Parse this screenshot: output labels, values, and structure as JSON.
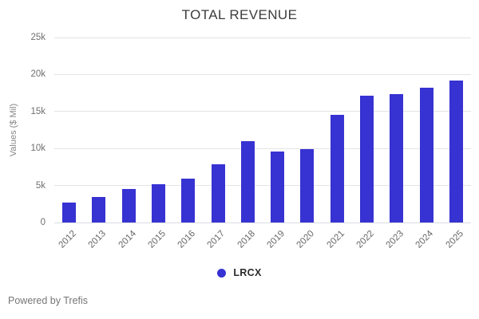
{
  "title": "TOTAL REVENUE",
  "footer": {
    "powered_by": "Powered by Trefis"
  },
  "legend": {
    "label": "LRCX",
    "marker_color": "#3732d2"
  },
  "colors": {
    "bar": "#3732d2",
    "grid": "#e4e4e4",
    "baseline": "#d8dde3",
    "axis_text": "#6f6f6f",
    "title_text": "#3c3c3c"
  },
  "chart_data": {
    "type": "bar",
    "title": "TOTAL REVENUE",
    "xlabel": "",
    "ylabel": "Values ($ Mil)",
    "categories": [
      "2012",
      "2013",
      "2014",
      "2015",
      "2016",
      "2017",
      "2018",
      "2019",
      "2020",
      "2021",
      "2022",
      "2023",
      "2024",
      "2025"
    ],
    "series": [
      {
        "name": "LRCX",
        "color": "#3732d2",
        "values": [
          2650,
          3500,
          4550,
          5200,
          5900,
          7900,
          11000,
          9600,
          9900,
          14600,
          17100,
          17350,
          18200,
          19200
        ]
      }
    ],
    "ylim": [
      0,
      25000
    ],
    "yticks": [
      {
        "value": 0,
        "label": "0"
      },
      {
        "value": 5000,
        "label": "5k"
      },
      {
        "value": 10000,
        "label": "10k"
      },
      {
        "value": 15000,
        "label": "15k"
      },
      {
        "value": 20000,
        "label": "20k"
      },
      {
        "value": 25000,
        "label": "25k"
      }
    ],
    "grid": "horizontal",
    "legend_position": "bottom-center"
  }
}
